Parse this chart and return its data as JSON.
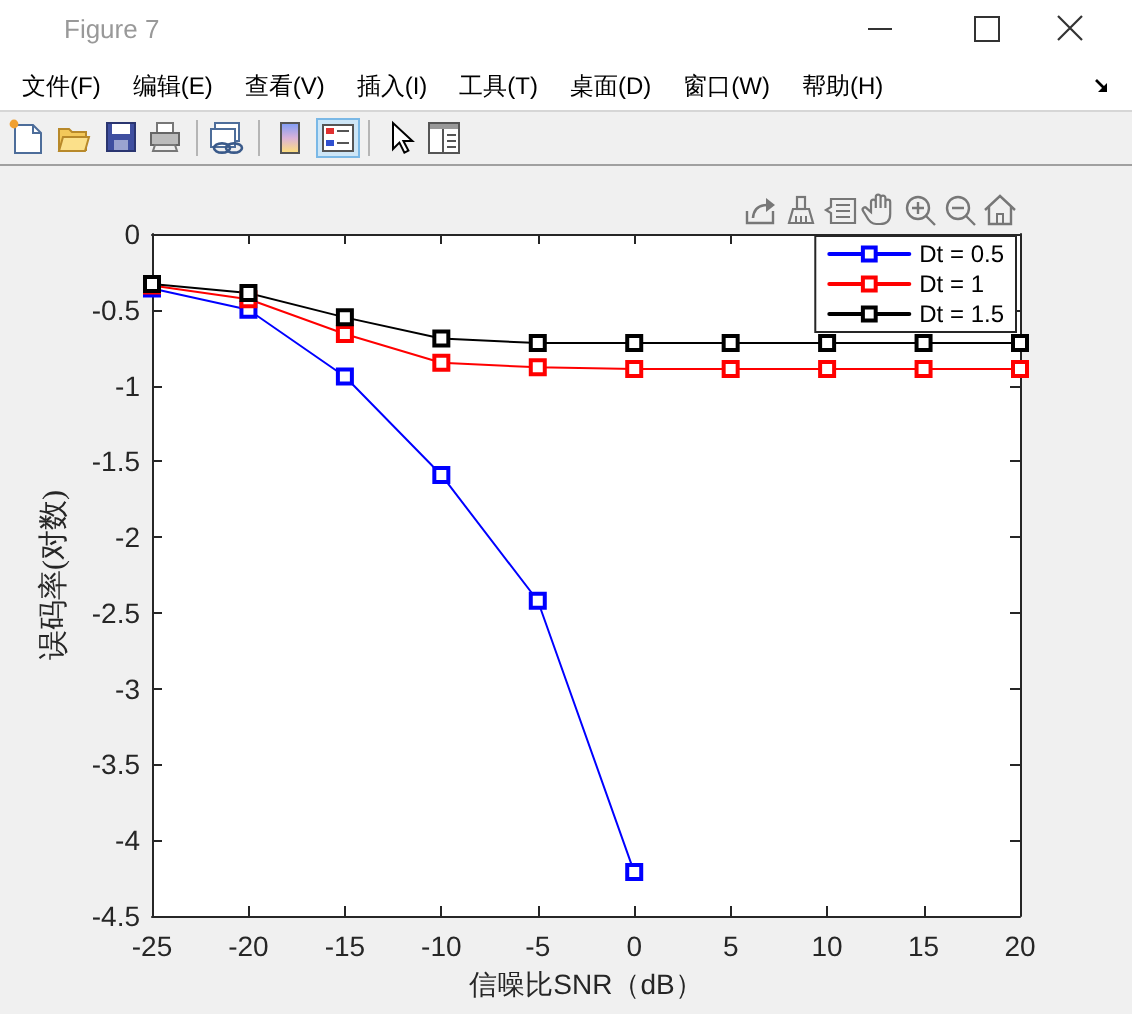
{
  "chart_data": {
    "type": "line",
    "xlabel": "信噪比SNR（dB）",
    "ylabel": "误码率(对数)",
    "annotations": [
      "Figure 7",
      "文件(F)",
      "编辑(E)",
      "查看(V)",
      "插入(I)",
      "工具(T)",
      "桌面(D)",
      "窗口(W)",
      "帮助(H)"
    ],
    "x": [
      -25,
      -20,
      -15,
      -10,
      -5,
      0,
      5,
      10,
      15,
      20
    ],
    "series": [
      {
        "name": "Dt = 0.5",
        "color": "#0000ff",
        "x": [
          -25,
          -20,
          -15,
          -10,
          -5,
          0
        ],
        "values": [
          -0.36,
          -0.5,
          -0.94,
          -1.59,
          -2.42,
          -4.21
        ]
      },
      {
        "name": "Dt = 1",
        "color": "#ff0000",
        "values": [
          -0.34,
          -0.43,
          -0.66,
          -0.85,
          -0.88,
          -0.89,
          -0.89,
          -0.89,
          -0.89,
          -0.89
        ]
      },
      {
        "name": "Dt = 1.5",
        "color": "#000000",
        "values": [
          -0.33,
          -0.39,
          -0.55,
          -0.69,
          -0.72,
          -0.72,
          -0.72,
          -0.72,
          -0.72,
          -0.72
        ]
      }
    ],
    "xlim": [
      -25,
      20
    ],
    "xticks": [
      -25,
      -20,
      -15,
      -10,
      -5,
      0,
      5,
      10,
      15,
      20
    ],
    "ylim": [
      -4.5,
      0
    ],
    "yticks": [
      -4.5,
      -4,
      -3.5,
      -3,
      -2.5,
      -2,
      -1.5,
      -1,
      -0.5,
      0
    ],
    "grid": false,
    "legend": "top right",
    "marker": "square",
    "line_style": "solid"
  }
}
